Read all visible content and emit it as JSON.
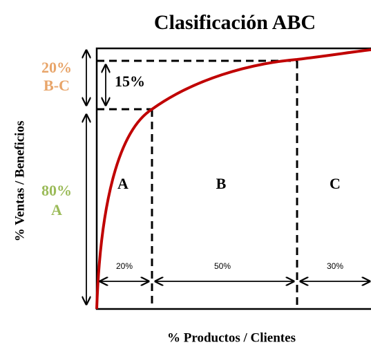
{
  "title": "Clasificación ABC",
  "y_axis_label": "% Ventas / Beneficios",
  "x_axis_label": "% Productos / Clientes",
  "value_bands": [
    {
      "percent": "20%",
      "label": "B-C"
    },
    {
      "percent": "80%",
      "label": "A"
    }
  ],
  "inner_gap": "15%",
  "classes": [
    {
      "label": "A",
      "share": "20%"
    },
    {
      "label": "B",
      "share": "50%"
    },
    {
      "label": "C",
      "share": "30%"
    }
  ]
}
